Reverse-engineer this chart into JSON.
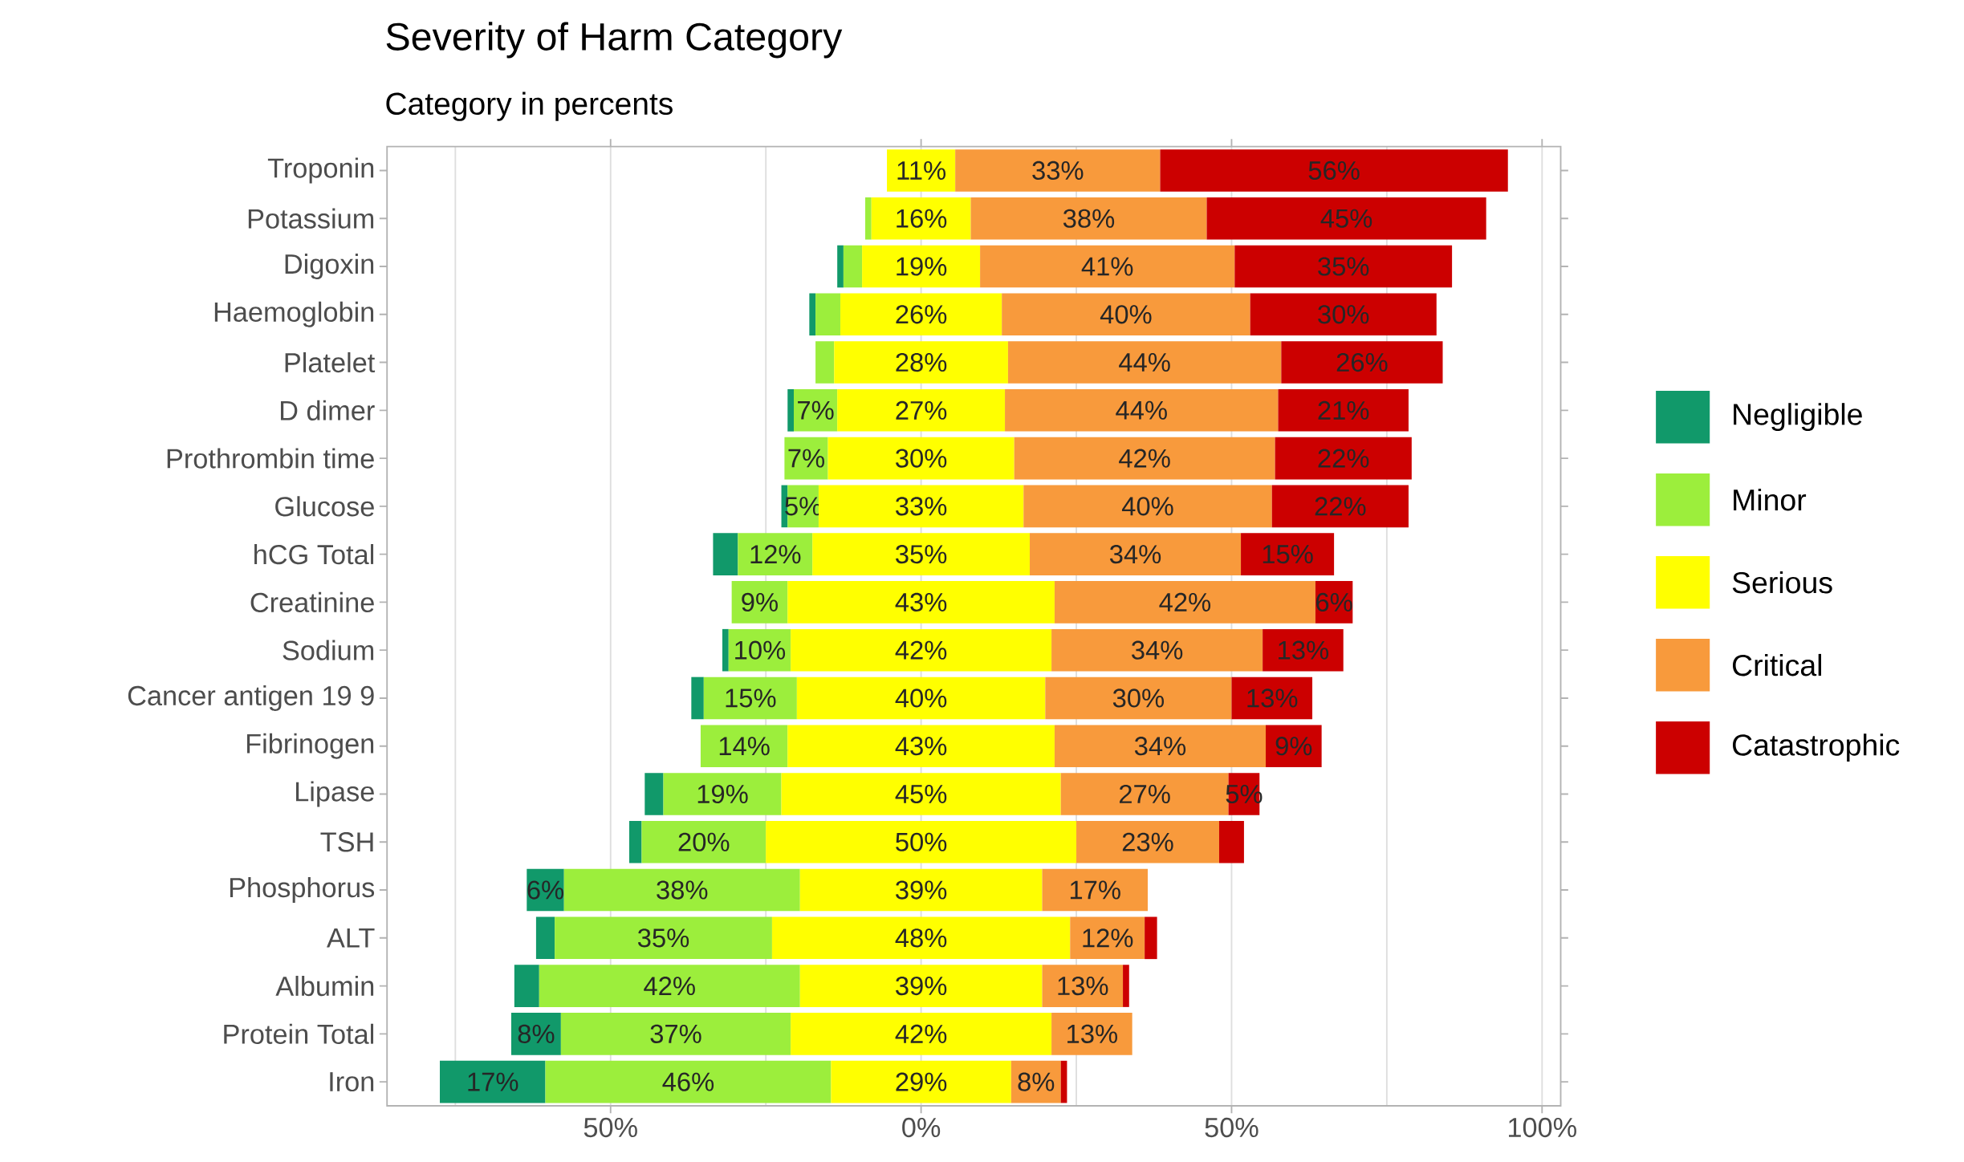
{
  "chart_data": {
    "type": "bar",
    "orientation": "horizontal",
    "title": "Severity of Harm Category",
    "subtitle": "Category in percents",
    "categories": [
      "Troponin",
      "Potassium",
      "Digoxin",
      "Haemoglobin",
      "Platelet",
      "D dimer",
      "Prothrombin time",
      "Glucose",
      "hCG Total",
      "Creatinine",
      "Sodium",
      "Cancer antigen 19 9",
      "Fibrinogen",
      "Lipase",
      "TSH",
      "Phosphorus",
      "ALT",
      "Albumin",
      "Protein Total",
      "Iron"
    ],
    "series": [
      {
        "name": "Negligible",
        "color": "#11996a",
        "values": [
          null,
          null,
          1,
          1,
          null,
          1,
          null,
          1,
          4,
          null,
          1,
          2,
          null,
          3,
          2,
          6,
          3,
          4,
          8,
          17
        ],
        "base": [
          null,
          null,
          -13.5,
          -18,
          null,
          -21.5,
          null,
          -22.5,
          -33.5,
          null,
          -32,
          -37,
          null,
          -44.5,
          -47,
          -63.5,
          -62,
          -65.5,
          -66,
          -77.5
        ],
        "value_labels": [
          null,
          null,
          null,
          null,
          null,
          null,
          null,
          null,
          null,
          null,
          null,
          null,
          null,
          null,
          null,
          "6%",
          null,
          null,
          "8%",
          "17%"
        ]
      },
      {
        "name": "Minor",
        "color": "#9cee3c",
        "values": [
          null,
          1,
          3,
          4,
          3,
          7,
          7,
          5,
          12,
          9,
          10,
          15,
          14,
          19,
          20,
          38,
          35,
          42,
          37,
          46
        ],
        "base": [
          null,
          -9,
          -12.5,
          -17,
          -17,
          -20.5,
          -22,
          -21.5,
          -29.5,
          -30.5,
          -31,
          -35,
          -35.5,
          -41.5,
          -45,
          -57.5,
          -59,
          -61.5,
          -58,
          -60.5
        ],
        "value_labels": [
          null,
          null,
          null,
          null,
          null,
          "7%",
          "7%",
          "5%",
          "12%",
          "9%",
          "10%",
          "15%",
          "14%",
          "19%",
          "20%",
          "38%",
          "35%",
          "42%",
          "37%",
          "46%"
        ]
      },
      {
        "name": "Serious",
        "color": "#ffff00",
        "values": [
          11,
          16,
          19,
          26,
          28,
          27,
          30,
          33,
          35,
          43,
          42,
          40,
          43,
          45,
          50,
          39,
          48,
          39,
          42,
          29
        ],
        "base": [
          -5.5,
          -8,
          -9.5,
          -13,
          -14,
          -13.5,
          -15,
          -16.5,
          -17.5,
          -21.5,
          -21,
          -20,
          -21.5,
          -22.5,
          -25,
          -19.5,
          -24,
          -19.5,
          -21,
          -14.5
        ],
        "value_labels": [
          "11%",
          "16%",
          "19%",
          "26%",
          "28%",
          "27%",
          "30%",
          "33%",
          "35%",
          "43%",
          "42%",
          "40%",
          "43%",
          "45%",
          "50%",
          "39%",
          "48%",
          "39%",
          "42%",
          "29%"
        ]
      },
      {
        "name": "Critical",
        "color": "#f89a3c",
        "values": [
          33,
          38,
          41,
          40,
          44,
          44,
          42,
          40,
          34,
          42,
          34,
          30,
          34,
          27,
          23,
          17,
          12,
          13,
          13,
          8
        ],
        "base": [
          5.5,
          8,
          9.5,
          13,
          14,
          13.5,
          15,
          16.5,
          17.5,
          21.5,
          21,
          20,
          21.5,
          22.5,
          25,
          19.5,
          24,
          19.5,
          21,
          14.5
        ],
        "value_labels": [
          "33%",
          "38%",
          "41%",
          "40%",
          "44%",
          "44%",
          "42%",
          "40%",
          "34%",
          "42%",
          "34%",
          "30%",
          "34%",
          "27%",
          "23%",
          "17%",
          "12%",
          "13%",
          "13%",
          "8%"
        ]
      },
      {
        "name": "Catastrophic",
        "color": "#cc0000",
        "values": [
          56,
          45,
          35,
          30,
          26,
          21,
          22,
          22,
          15,
          6,
          13,
          13,
          9,
          5,
          4,
          null,
          2,
          1,
          null,
          1
        ],
        "base": [
          38.5,
          46,
          50.5,
          53,
          58,
          57.5,
          57,
          56.5,
          51.5,
          63.5,
          55,
          50,
          55.5,
          49.5,
          48,
          null,
          36,
          32.5,
          null,
          22.5
        ],
        "value_labels": [
          "56%",
          "45%",
          "35%",
          "30%",
          "26%",
          "21%",
          "22%",
          "22%",
          "15%",
          "6%",
          "13%",
          "13%",
          "9%",
          "5%",
          null,
          null,
          null,
          null,
          null,
          null
        ]
      }
    ],
    "xlim": [
      -86,
      103
    ],
    "xticks": [
      {
        "value": -75,
        "label": null
      },
      {
        "value": -50,
        "label": "50%"
      },
      {
        "value": -25,
        "label": null
      },
      {
        "value": 0,
        "label": "0%"
      },
      {
        "value": 25,
        "label": null
      },
      {
        "value": 50,
        "label": "50%"
      },
      {
        "value": 75,
        "label": null
      },
      {
        "value": 100,
        "label": "100%"
      }
    ],
    "grid": "x",
    "legend": "right"
  }
}
